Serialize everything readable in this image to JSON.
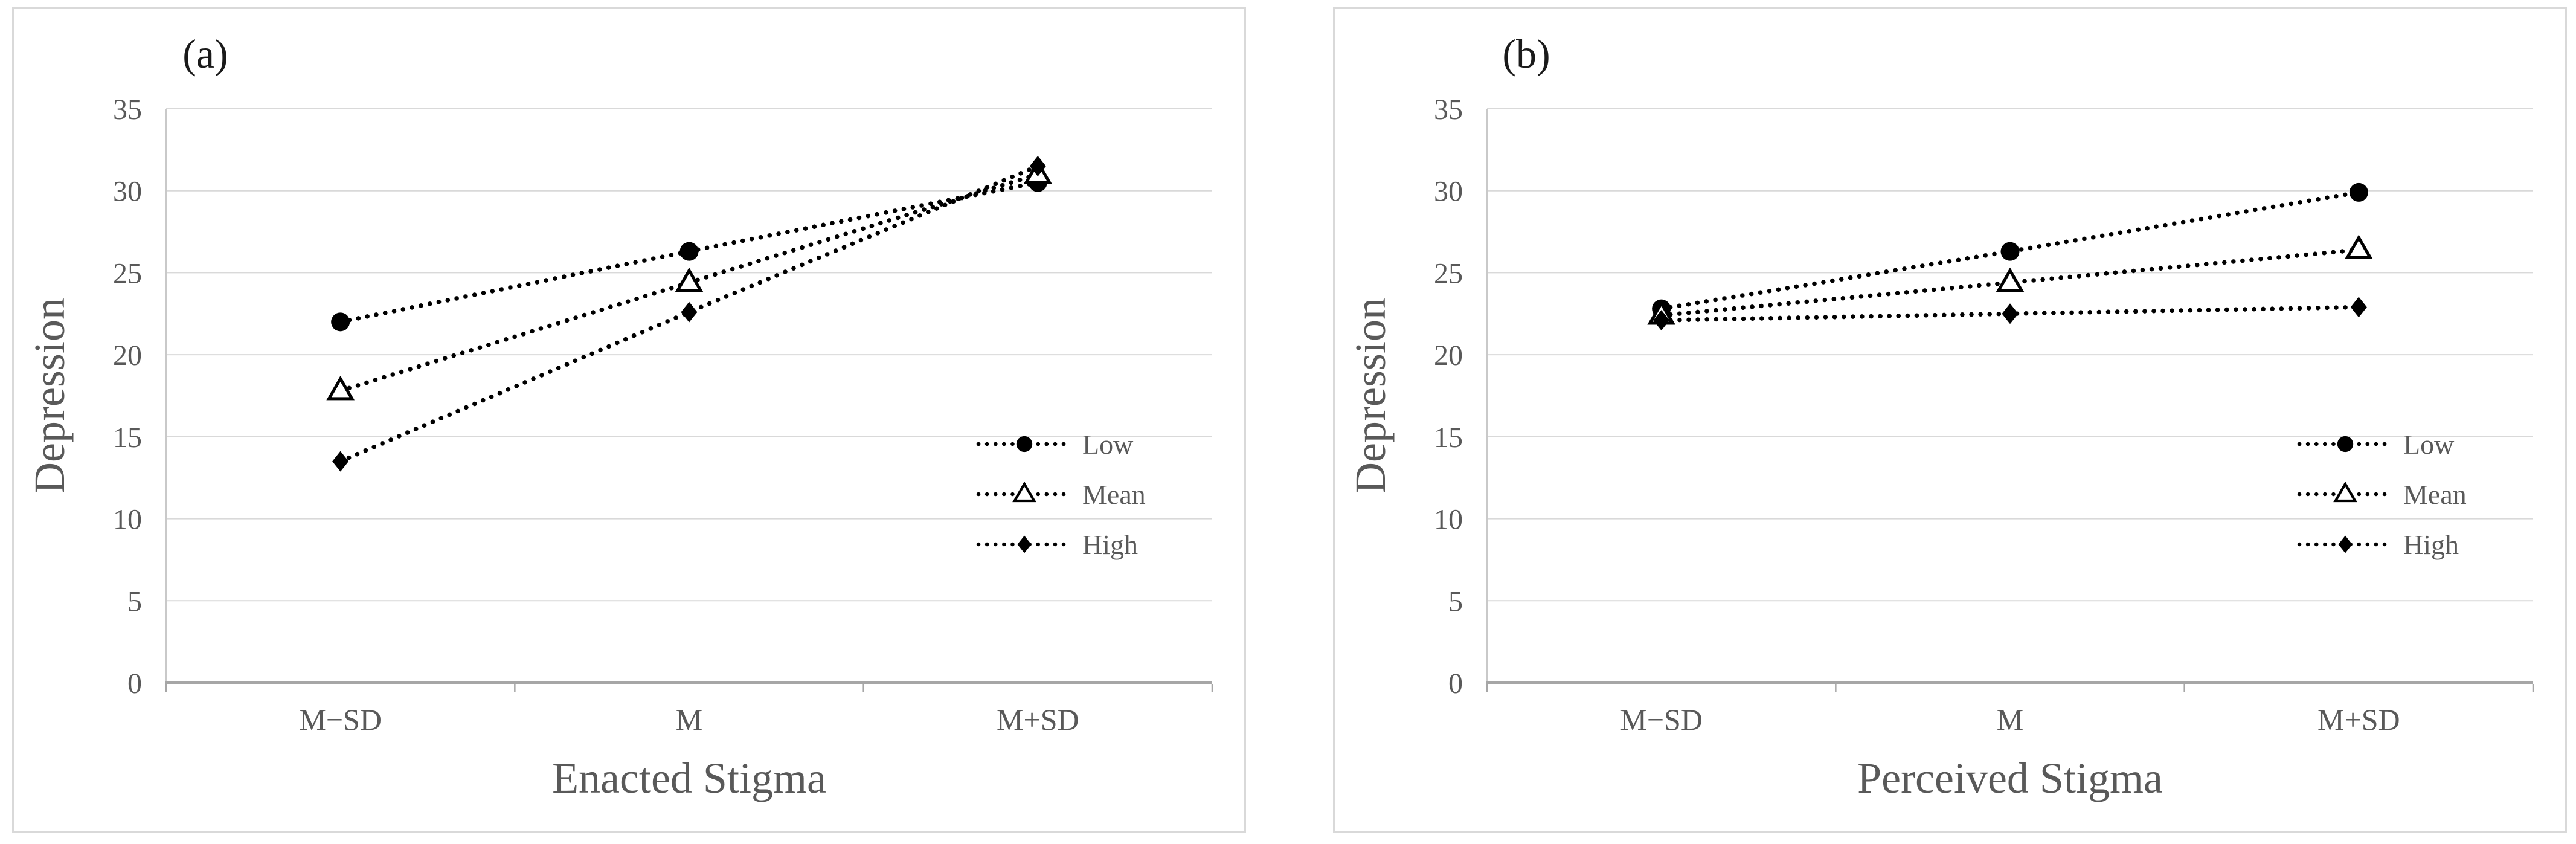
{
  "figure": {
    "background": "#ffffff",
    "panel_border_color": "#d9d9d9",
    "gridline_color": "#d9d9d9",
    "y_axis_line_color": "#c9c9c9",
    "x_axis_line_color": "#a6a6a6",
    "text_color": "#595959",
    "panel_label_color": "#1a1a1a",
    "series_color": "#000000"
  },
  "chart_data": [
    {
      "type": "line",
      "panel_label": "(a)",
      "title": "",
      "xlabel": "Enacted Stigma",
      "ylabel": "Depression",
      "categories": [
        "M−SD",
        "M",
        "M+SD"
      ],
      "ylim": [
        0,
        35
      ],
      "yticks": [
        0,
        5,
        10,
        15,
        20,
        25,
        30,
        35
      ],
      "grid": true,
      "linestyle": "dotted",
      "legend_position": "inside-right",
      "series": [
        {
          "name": "Low",
          "marker": "filled-circle",
          "values": [
            22.0,
            26.3,
            30.5
          ]
        },
        {
          "name": "Mean",
          "marker": "open-triangle",
          "values": [
            17.8,
            24.4,
            31.0
          ]
        },
        {
          "name": "High",
          "marker": "filled-diamond",
          "values": [
            13.5,
            22.6,
            31.5
          ]
        }
      ]
    },
    {
      "type": "line",
      "panel_label": "(b)",
      "title": "",
      "xlabel": "Perceived Stigma",
      "ylabel": "Depression",
      "categories": [
        "M−SD",
        "M",
        "M+SD"
      ],
      "ylim": [
        0,
        35
      ],
      "yticks": [
        0,
        5,
        10,
        15,
        20,
        25,
        30,
        35
      ],
      "grid": true,
      "linestyle": "dotted",
      "legend_position": "inside-right",
      "series": [
        {
          "name": "Low",
          "marker": "filled-circle",
          "values": [
            22.8,
            26.3,
            29.9
          ]
        },
        {
          "name": "Mean",
          "marker": "open-triangle",
          "values": [
            22.4,
            24.4,
            26.4
          ]
        },
        {
          "name": "High",
          "marker": "filled-diamond",
          "values": [
            22.1,
            22.5,
            22.9
          ]
        }
      ]
    }
  ]
}
